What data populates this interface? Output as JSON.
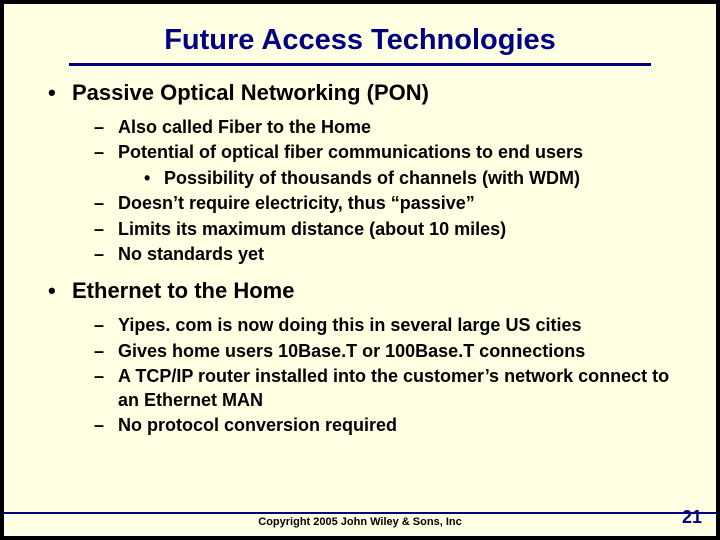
{
  "title": "Future Access Technologies",
  "sections": [
    {
      "heading": "Passive Optical Networking (PON)",
      "items": [
        {
          "level": 2,
          "text": "Also called Fiber to the Home"
        },
        {
          "level": 2,
          "text": "Potential of optical fiber communications to end users"
        },
        {
          "level": 3,
          "text": "Possibility of thousands of channels (with WDM)"
        },
        {
          "level": 2,
          "text": "Doesn’t require electricity, thus “passive”"
        },
        {
          "level": 2,
          "text": "Limits its maximum distance (about 10 miles)"
        },
        {
          "level": 2,
          "text": "No standards yet"
        }
      ]
    },
    {
      "heading": "Ethernet to the Home",
      "items": [
        {
          "level": 2,
          "text": "Yipes. com is now doing this in several large US cities"
        },
        {
          "level": 2,
          "text": "Gives home users 10Base.T or 100Base.T connections"
        },
        {
          "level": 2,
          "text": "A TCP/IP router installed into the customer’s network connect to an Ethernet MAN"
        },
        {
          "level": 2,
          "text": "No protocol conversion required"
        }
      ]
    }
  ],
  "copyright": "Copyright 2005 John Wiley & Sons, Inc",
  "page_number": "21",
  "colors": {
    "background": "#ffffe3",
    "title_color": "#000080",
    "rule_color": "#000080",
    "text_color": "#000000",
    "outer_border": "#000000"
  },
  "typography": {
    "title_fontsize": 29,
    "l1_fontsize": 22,
    "l2_fontsize": 18,
    "l3_fontsize": 18,
    "footer_fontsize": 11,
    "pagenum_fontsize": 18,
    "title_font": "Arial Black",
    "body_font": "Arial"
  }
}
